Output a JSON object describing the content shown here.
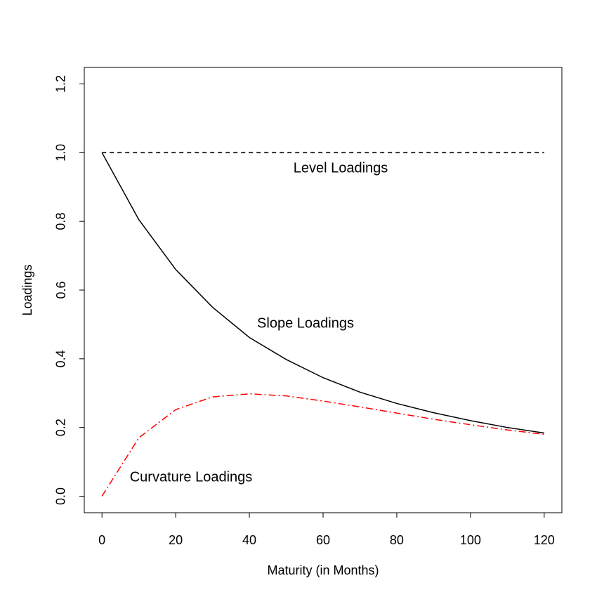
{
  "chart_data": {
    "type": "line",
    "x_label": "Maturity (in Months)",
    "y_label": "Loadings",
    "x": [
      0,
      10,
      20,
      30,
      40,
      50,
      60,
      70,
      80,
      90,
      100,
      110,
      120
    ],
    "series": [
      {
        "name": "Level Loadings",
        "color": "#000000",
        "style": "dashed",
        "values": [
          1,
          1,
          1,
          1,
          1,
          1,
          1,
          1,
          1,
          1,
          1,
          1,
          1
        ]
      },
      {
        "name": "Slope Loadings",
        "color": "#000000",
        "style": "solid",
        "values": [
          1.0,
          0.805,
          0.66,
          0.55,
          0.462,
          0.398,
          0.345,
          0.303,
          0.27,
          0.243,
          0.22,
          0.2,
          0.184
        ]
      },
      {
        "name": "Curvature Loadings",
        "color": "#ff0000",
        "style": "dashdot",
        "values": [
          0,
          0.17,
          0.252,
          0.289,
          0.298,
          0.292,
          0.277,
          0.26,
          0.242,
          0.224,
          0.208,
          0.193,
          0.18
        ]
      }
    ],
    "xlim": [
      -4.8,
      124.8
    ],
    "ylim": [
      -0.048,
      1.248
    ],
    "xticks": [
      0,
      20,
      40,
      60,
      80,
      100,
      120
    ],
    "yticks": [
      {
        "value": 0,
        "label": "0.0"
      },
      0.2,
      0.4,
      0.6,
      0.8,
      {
        "value": 1,
        "label": "1.0"
      },
      1.2
    ]
  }
}
